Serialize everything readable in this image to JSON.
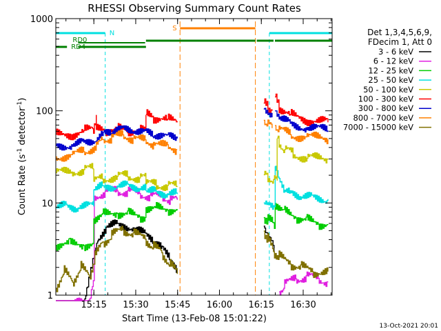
{
  "chart_data": {
    "type": "line",
    "title": "RHESSI Observing Summary Count Rates",
    "xlabel": "Start Time (13-Feb-08 15:01:22)",
    "ylabel_main": "Count Rate (s",
    "ylabel_sup1": "-1",
    "ylabel_mid": " detector",
    "ylabel_sup2": "-1",
    "ylabel_end": ")",
    "y_scale": "log",
    "ylim": [
      1,
      1000
    ],
    "xlim_minutes": [
      0,
      99
    ],
    "x_ticks": [
      {
        "min": 13.63,
        "label": "15:15"
      },
      {
        "min": 28.63,
        "label": "15:30"
      },
      {
        "min": 43.63,
        "label": "15:45"
      },
      {
        "min": 58.63,
        "label": "16:00"
      },
      {
        "min": 73.63,
        "label": "16:15"
      },
      {
        "min": 88.63,
        "label": "16:30"
      }
    ],
    "y_ticks": [
      {
        "value": 1,
        "label": "1"
      },
      {
        "value": 10,
        "label": "10"
      },
      {
        "value": 100,
        "label": "100"
      },
      {
        "value": 1000,
        "label": "1000"
      }
    ],
    "legend_header": [
      "Det 1,3,4,5,6,9,",
      "FDecim 1, Att 0"
    ],
    "legend_placement": "right",
    "footer_date": "13-Oct-2021 20:01",
    "flag_labels": {
      "night": "N",
      "saa": "S",
      "rd0": "RD0",
      "rd4": "RD4"
    },
    "flags": {
      "night": [
        [
          0,
          17.7
        ],
        [
          76.5,
          99
        ]
      ],
      "saa": [
        [
          44.5,
          71.5
        ]
      ],
      "rd0": [
        [
          8,
          32
        ]
      ],
      "rd4": [
        [
          0,
          4
        ],
        [
          8,
          32.3
        ],
        [
          32.3,
          71.5
        ],
        [
          72,
          78
        ],
        [
          78.5,
          99
        ]
      ]
    },
    "data_gap": [
      44.5,
      74.5
    ],
    "series": [
      {
        "name": "3 - 6 keV",
        "color": "#000000",
        "segments": [
          {
            "x": [
              0,
              10,
              15,
              18,
              22,
              28,
              32,
              35,
              38,
              41,
              43.5
            ],
            "y": [
              0.7,
              0.8,
              3.8,
              5.6,
              5.8,
              5.5,
              4.5,
              4.0,
              3.2,
              2.6,
              1.8
            ]
          },
          {
            "x": [
              74.5,
              75.5,
              76.5,
              77.5,
              78.2
            ],
            "y": [
              5.6,
              4.8,
              4.2,
              4.0,
              3.0
            ]
          }
        ]
      },
      {
        "name": "6 - 12 keV",
        "color": "#e020e0",
        "segments": [
          {
            "x": [
              0,
              12,
              13.8
            ],
            "y": [
              0.8,
              0.8,
              1.5
            ]
          },
          {
            "x": [
              13.8,
              18,
              22,
              26,
              30,
              34,
              38,
              41,
              43.5
            ],
            "y": [
              12.0,
              13.0,
              13.5,
              13.3,
              12.5,
              12.0,
              11.5,
              11.0,
              10.8
            ]
          },
          {
            "x": [
              80,
              82,
              86,
              90,
              94,
              97.5
            ],
            "y": [
              1.1,
              1.3,
              1.5,
              1.6,
              1.5,
              1.4
            ]
          }
        ]
      },
      {
        "name": "12 - 25 keV",
        "color": "#00cc00",
        "segments": [
          {
            "x": [
              0,
              5,
              10,
              13.6
            ],
            "y": [
              3.5,
              3.6,
              3.5,
              3.6
            ]
          },
          {
            "x": [
              13.6,
              17,
              22,
              26,
              30,
              32.3
            ],
            "y": [
              6.8,
              7.5,
              7.8,
              7.6,
              7.2,
              7.0
            ]
          },
          {
            "x": [
              32.3,
              36,
              40,
              43.5
            ],
            "y": [
              9.0,
              8.8,
              8.5,
              8.3
            ]
          },
          {
            "x": [
              74.5,
              76,
              78,
              78.6
            ],
            "y": [
              7.0,
              6.5,
              6.2,
              6.0
            ]
          },
          {
            "x": [
              78.6,
              82,
              86,
              90,
              94,
              97.5
            ],
            "y": [
              10.0,
              8.0,
              7.0,
              6.5,
              6.0,
              5.8
            ]
          }
        ]
      },
      {
        "name": "25 - 50 keV",
        "color": "#00e0e0",
        "segments": [
          {
            "x": [
              0,
              4,
              8,
              13.6
            ],
            "y": [
              9.0,
              9.2,
              9.0,
              9.2
            ]
          },
          {
            "x": [
              13.6,
              17,
              22,
              26,
              30,
              32.3
            ],
            "y": [
              14.0,
              15.0,
              15.5,
              15.2,
              14.8,
              14.5
            ]
          },
          {
            "x": [
              32.3,
              36,
              40,
              43.5
            ],
            "y": [
              13.5,
              13.0,
              12.8,
              12.5
            ]
          },
          {
            "x": [
              74.5,
              76,
              78,
              78.6
            ],
            "y": [
              10.0,
              9.8,
              9.5,
              9.4
            ]
          },
          {
            "x": [
              78.6,
              80,
              82,
              84,
              88,
              92,
              97.5
            ],
            "y": [
              25.0,
              18.0,
              14.0,
              13.0,
              12.0,
              11.5,
              11.0
            ]
          }
        ]
      },
      {
        "name": "50 - 100 keV",
        "color": "#c8c800",
        "segments": [
          {
            "x": [
              0,
              6,
              10,
              13.6
            ],
            "y": [
              21.0,
              22.0,
              23.0,
              23.5
            ]
          },
          {
            "x": [
              13.6,
              17,
              22,
              26,
              30,
              32.3
            ],
            "y": [
              17.0,
              18.5,
              19.5,
              19.5,
              19.0,
              18.5
            ]
          },
          {
            "x": [
              32.3,
              36,
              40,
              43.5
            ],
            "y": [
              16.0,
              15.8,
              15.5,
              15.0
            ]
          },
          {
            "x": [
              74.5,
              76,
              78,
              79.3
            ],
            "y": [
              20.0,
              19.0,
              18.0,
              17.5
            ]
          },
          {
            "x": [
              79.3,
              80,
              82,
              85,
              90,
              97.5
            ],
            "y": [
              50.0,
              45.0,
              38.0,
              34.0,
              31.0,
              29.5
            ]
          }
        ]
      },
      {
        "name": "100 - 300 keV",
        "color": "#ff0000",
        "segments": [
          {
            "x": [
              0,
              6,
              10,
              13.5,
              14.5
            ],
            "y": [
              55.0,
              56.0,
              60.0,
              66.0,
              90.0
            ]
          },
          {
            "x": [
              14.5,
              18,
              22,
              26,
              30,
              32.3
            ],
            "y": [
              62.0,
              62.0,
              63.0,
              62.0,
              60.0,
              60.0
            ]
          },
          {
            "x": [
              32.3,
              35,
              40,
              43.5
            ],
            "y": [
              90.0,
              85.0,
              80.0,
              77.0
            ]
          },
          {
            "x": [
              74.5,
              76,
              77.5
            ],
            "y": [
              120.0,
              110.0,
              100.0
            ]
          },
          {
            "x": [
              78.5,
              80,
              84,
              90,
              97.5
            ],
            "y": [
              140.0,
              110.0,
              90.0,
              80.0,
              75.0
            ]
          }
        ]
      },
      {
        "name": "300 - 800 keV",
        "color": "#0000cc",
        "segments": [
          {
            "x": [
              0,
              6,
              10,
              14.5,
              17,
              20,
              24,
              28,
              32,
              35,
              40,
              43.5
            ],
            "y": [
              42.0,
              43.0,
              45.0,
              50.0,
              57.0,
              61.0,
              63.0,
              62.0,
              58.0,
              56.0,
              52.0,
              50.0
            ]
          },
          {
            "x": [
              74.5,
              76,
              77.5
            ],
            "y": [
              105.0,
              95.0,
              85.0
            ]
          },
          {
            "x": [
              78.5,
              80,
              84,
              90,
              97.5
            ],
            "y": [
              100.0,
              85.0,
              72.0,
              66.0,
              61.0
            ]
          }
        ]
      },
      {
        "name": "800 - 7000 keV",
        "color": "#ff8000",
        "segments": [
          {
            "x": [
              0,
              6,
              10,
              14.5,
              17,
              20,
              24,
              28,
              32,
              35,
              40,
              43.5
            ],
            "y": [
              32.0,
              33.0,
              36.0,
              42.0,
              48.0,
              52.0,
              53.0,
              51.0,
              46.0,
              44.0,
              40.0,
              38.0
            ]
          },
          {
            "x": [
              74.5,
              76,
              77.5
            ],
            "y": [
              80.0,
              72.0,
              65.0
            ]
          },
          {
            "x": [
              78.5,
              80,
              84,
              90,
              97.5
            ],
            "y": [
              70.0,
              62.0,
              55.0,
              52.0,
              49.0
            ]
          }
        ]
      },
      {
        "name": "7000 - 15000 keV",
        "color": "#807000",
        "segments": [
          {
            "x": [
              0,
              3,
              6,
              9,
              12,
              14,
              17,
              20,
              24,
              28,
              32,
              35,
              38,
              41,
              43.5
            ],
            "y": [
              1.2,
              1.8,
              1.4,
              2.0,
              1.6,
              2.6,
              3.8,
              4.4,
              5.2,
              4.6,
              4.0,
              3.4,
              2.8,
              2.2,
              1.7
            ]
          },
          {
            "x": [
              74.5,
              76,
              78,
              80,
              84,
              88,
              92,
              97.5
            ],
            "y": [
              5.0,
              4.0,
              3.0,
              2.6,
              2.2,
              2.0,
              1.8,
              1.8
            ]
          }
        ]
      }
    ]
  }
}
